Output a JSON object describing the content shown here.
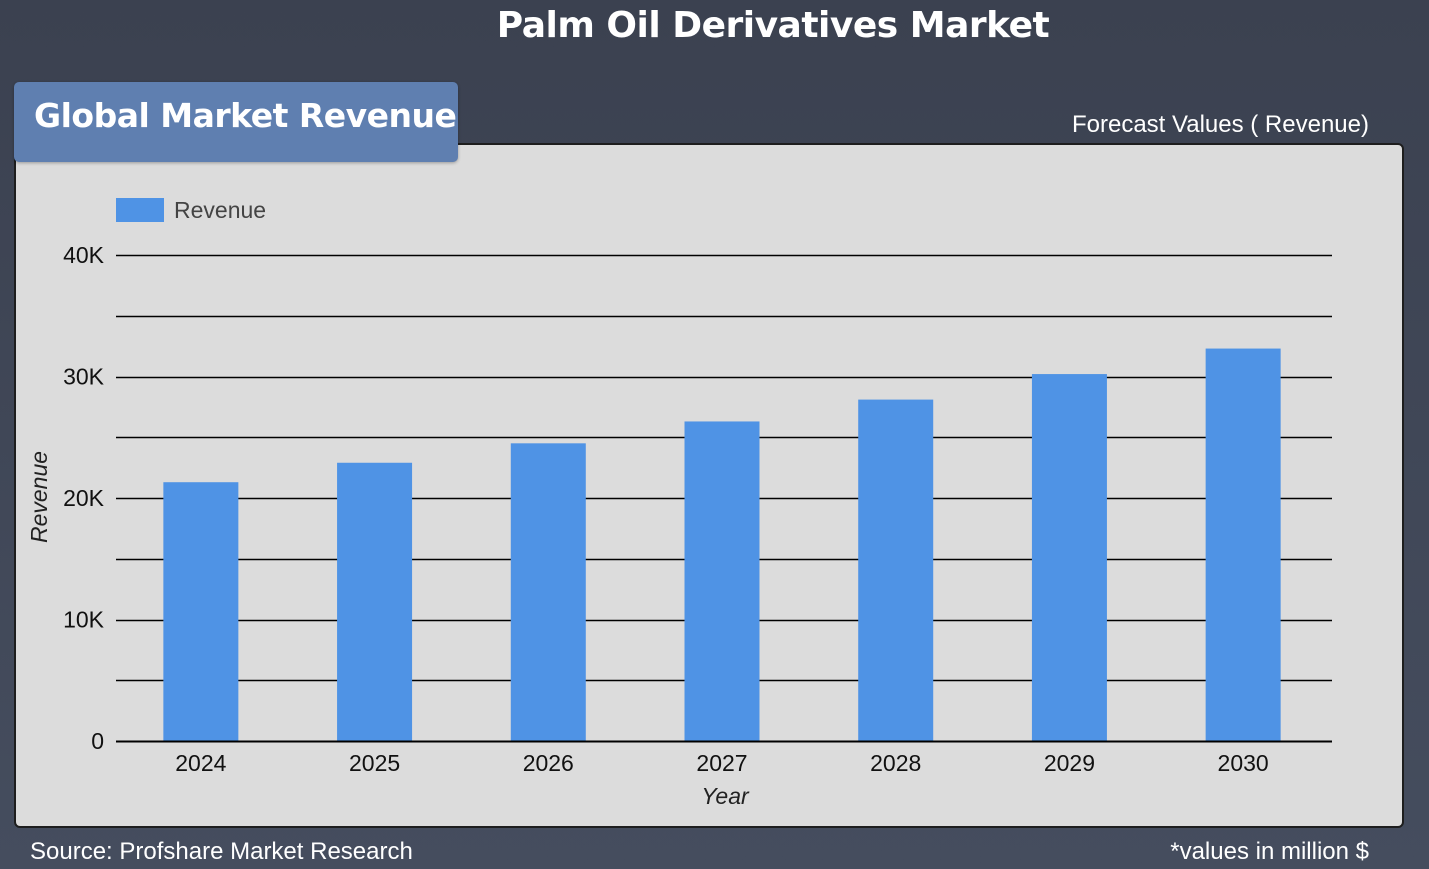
{
  "page": {
    "title": "Palm Oil Derivatives Market",
    "panel_title": "Global Market Revenue",
    "forecast_note": "Forecast Values ( Revenue)",
    "source": "Source: Profshare Market Research",
    "units_note": "*values in million $"
  },
  "colors": {
    "bar": "#4f93e5",
    "panel": "#dcdcdc",
    "header_tab": "#5f7fb0",
    "grid": "#000000"
  },
  "chart_data": {
    "type": "bar",
    "categories": [
      "2024",
      "2025",
      "2026",
      "2027",
      "2028",
      "2029",
      "2030"
    ],
    "series": [
      {
        "name": "Revenue",
        "values": [
          21300,
          22900,
          24500,
          26300,
          28100,
          30200,
          32300
        ]
      }
    ],
    "xlabel": "Year",
    "ylabel": "Revenue",
    "ylim": [
      0,
      40000
    ],
    "yticks": [
      0,
      10000,
      20000,
      30000,
      40000
    ],
    "ytick_labels": [
      "0",
      "10K",
      "20K",
      "30K",
      "40K"
    ],
    "grid": true,
    "legend": "top-left"
  }
}
